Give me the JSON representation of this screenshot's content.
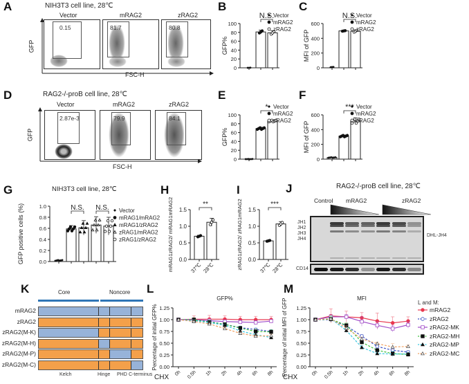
{
  "panels": {
    "A": {
      "label": "A",
      "title": "NIH3T3 cell line, 28℃",
      "samples": [
        "Vector",
        "mRAG2",
        "zRAG2"
      ],
      "gate_values": [
        "0.15",
        "81.7",
        "80.8"
      ],
      "y_axis": "GFP",
      "x_axis": "FSC-H"
    },
    "D": {
      "label": "D",
      "title": "RAG2-/-proB cell line, 28℃",
      "samples": [
        "Vector",
        "mRAG2",
        "zRAG2"
      ],
      "gate_values": [
        "2.87e-3",
        "79.9",
        "84.1"
      ],
      "y_axis": "GFP",
      "x_axis": "FSC-H"
    },
    "J": {
      "label": "J",
      "title": "RAG2-/-proB cell line, 28℃",
      "lanes": [
        "Control",
        "mRAG2",
        "zRAG2"
      ],
      "bands": [
        "JH1",
        "JH2",
        "JH3",
        "JH4"
      ],
      "right_label": "DHL-JH4",
      "loading": "CD14",
      "band_intensity": [
        0,
        1,
        0.8,
        0.75,
        1,
        0.9,
        0.45
      ],
      "cd14_intensity": [
        1,
        0.95,
        0.85,
        0.35,
        0.95,
        0.85,
        0.4
      ]
    },
    "K": {
      "label": "K",
      "header": [
        "Core",
        "Noncore"
      ],
      "header_color": "#2e75b6",
      "domains": [
        "Kelch",
        "Hinge",
        "PHD",
        "C-terminus"
      ],
      "colors": {
        "m": "#97b3d9",
        "z": "#f4a04a"
      },
      "constructs": [
        {
          "name": "mRAG2",
          "segments": [
            "m",
            "m",
            "m",
            "m"
          ]
        },
        {
          "name": "zRAG2",
          "segments": [
            "z",
            "z",
            "z",
            "z"
          ]
        },
        {
          "name": "zRAG2(M-K)",
          "segments": [
            "m",
            "z",
            "z",
            "z"
          ]
        },
        {
          "name": "zRAG2(M-H)",
          "segments": [
            "z",
            "m",
            "z",
            "z"
          ]
        },
        {
          "name": "zRAG2(M-P)",
          "segments": [
            "z",
            "z",
            "m",
            "z"
          ]
        },
        {
          "name": "zRAG2(M-C)",
          "segments": [
            "z",
            "z",
            "z",
            "m"
          ]
        }
      ]
    }
  },
  "chart_data": [
    {
      "id": "B",
      "type": "bar",
      "title": "",
      "ylabel": "GFP%",
      "categories": [
        "Vector",
        "mRAG2",
        "zRAG2"
      ],
      "values": [
        0,
        81,
        79
      ],
      "errors": [
        0.5,
        4,
        5
      ],
      "ylim": [
        0,
        100
      ],
      "yticks": [
        0,
        20,
        40,
        60,
        80,
        100
      ],
      "significance": [
        {
          "pair": [
            1,
            2
          ],
          "label": "N.S."
        }
      ],
      "legend": [
        "Vector",
        "mRAG2",
        "zRAG2"
      ],
      "markers": [
        "diamond",
        "filled-circle",
        "open-circle"
      ],
      "legend_position": "right"
    },
    {
      "id": "C",
      "type": "bar",
      "ylabel": "MFI of GFP",
      "categories": [
        "Vector",
        "mRAG2",
        "zRAG2"
      ],
      "values": [
        10,
        500,
        495
      ],
      "errors": [
        3,
        6,
        20
      ],
      "ylim": [
        0,
        600
      ],
      "yticks": [
        0,
        200,
        400,
        600
      ],
      "significance": [
        {
          "pair": [
            1,
            2
          ],
          "label": "N.S."
        }
      ],
      "legend": [
        "Vector",
        "mRAG2",
        "zRAG2"
      ],
      "legend_position": "right"
    },
    {
      "id": "E",
      "type": "bar",
      "ylabel": "GFP%",
      "categories": [
        "Vector",
        "mRAG2",
        "zRAG2"
      ],
      "values": [
        0,
        69,
        86
      ],
      "errors": [
        0.5,
        3,
        3
      ],
      "ylim": [
        0,
        100
      ],
      "yticks": [
        0,
        20,
        40,
        60,
        80,
        100
      ],
      "significance": [
        {
          "pair": [
            1,
            2
          ],
          "label": "*"
        }
      ],
      "legend": [
        "Vector",
        "mRAG2",
        "zRAG2"
      ],
      "legend_position": "right"
    },
    {
      "id": "F",
      "type": "bar",
      "ylabel": "MFI of GFP",
      "categories": [
        "Vector",
        "mRAG2",
        "zRAG2"
      ],
      "values": [
        22,
        312,
        515
      ],
      "errors": [
        5,
        15,
        45
      ],
      "ylim": [
        0,
        600
      ],
      "yticks": [
        0,
        200,
        400,
        600
      ],
      "significance": [
        {
          "pair": [
            1,
            2
          ],
          "label": "***"
        }
      ],
      "legend": [
        "Vector",
        "mRAG2",
        "zRAG2"
      ],
      "legend_position": "right"
    },
    {
      "id": "G",
      "type": "bar",
      "title": "NIH3T3 cell line, 28℃",
      "ylabel": "GFP positive cells (%)",
      "categories": [
        "Vector",
        "mRAG1/mRAG2",
        "mRAG1/zRAG2",
        "zRAG1/mRAG2",
        "zRAG1/zRAG2"
      ],
      "values": [
        0.02,
        0.59,
        0.61,
        0.66,
        0.64
      ],
      "errors": [
        0.01,
        0.06,
        0.13,
        0.15,
        0.16
      ],
      "ylim": [
        0,
        1.0
      ],
      "yticks": [
        "0.0",
        "0.2",
        "0.4",
        "0.6",
        "0.8",
        "1.0"
      ],
      "significance": [
        {
          "pair": [
            1,
            2
          ],
          "label": "N.S."
        },
        {
          "pair": [
            3,
            4
          ],
          "label": "N.S."
        }
      ],
      "legend": [
        "Vector",
        "mRAG1/mRAG2",
        "mRAG1/zRAG2",
        "zRAG1/mRAG2",
        "zRAG1/zRAG2"
      ],
      "legend_position": "right"
    },
    {
      "id": "H",
      "type": "bar",
      "ylabel": "mRAG1zRAG2/ mRAG1mRAG2",
      "categories": [
        "37℃",
        "28℃"
      ],
      "values": [
        0.7,
        1.12
      ],
      "errors": [
        0.03,
        0.12
      ],
      "ylim": [
        0,
        1.5
      ],
      "yticks": [
        "0.0",
        "0.5",
        "1.0",
        "1.5"
      ],
      "significance": [
        {
          "pair": [
            0,
            1
          ],
          "label": "**"
        }
      ]
    },
    {
      "id": "I",
      "type": "bar",
      "ylabel": "zRAG1zRAG2/ zRAG1mRAG2",
      "categories": [
        "37℃",
        "28℃"
      ],
      "values": [
        0.56,
        1.07
      ],
      "errors": [
        0.02,
        0.07
      ],
      "ylim": [
        0,
        1.5
      ],
      "yticks": [
        "0.0",
        "0.5",
        "1.0",
        "1.5"
      ],
      "significance": [
        {
          "pair": [
            0,
            1
          ],
          "label": "***"
        }
      ]
    },
    {
      "id": "L",
      "type": "line",
      "title": "GFP%",
      "ylabel": "Percentage of initial GFP%",
      "xlabel": "CHX",
      "x": [
        "0h",
        "0.5h",
        "1h",
        "2h",
        "4h",
        "6h",
        "8h"
      ],
      "ylim": [
        0,
        1.25
      ],
      "yticks": [
        "0.00",
        "0.25",
        "0.50",
        "0.75",
        "1.00",
        "1.25"
      ],
      "series": [
        {
          "name": "mRAG2",
          "values": [
            1.0,
            1.01,
            1.01,
            1.01,
            1.0,
            1.0,
            1.0
          ],
          "err": [
            0,
            0.07,
            0.08,
            0.07,
            0.07,
            0.07,
            0.07
          ]
        },
        {
          "name": "zRAG2",
          "values": [
            1.0,
            0.99,
            0.96,
            0.9,
            0.83,
            0.79,
            0.75
          ],
          "err": [
            0,
            0.03,
            0.03,
            0.03,
            0.03,
            0.03,
            0.03
          ]
        },
        {
          "name": "zRAG2-MK",
          "values": [
            1.0,
            1.0,
            0.98,
            0.96,
            0.95,
            0.94,
            0.97
          ],
          "err": [
            0,
            0.03,
            0.03,
            0.03,
            0.04,
            0.04,
            0.03
          ]
        },
        {
          "name": "zRAG2-MH",
          "values": [
            1.0,
            1.0,
            0.95,
            0.9,
            0.82,
            0.75,
            0.74
          ],
          "err": [
            0,
            0.04,
            0.04,
            0.04,
            0.04,
            0.05,
            0.05
          ]
        },
        {
          "name": "zRAG2-MP",
          "values": [
            1.0,
            0.98,
            0.94,
            0.88,
            0.76,
            0.68,
            0.62
          ],
          "err": [
            0,
            0.03,
            0.03,
            0.03,
            0.03,
            0.03,
            0.03
          ]
        },
        {
          "name": "zRAG2-MC",
          "values": [
            1.0,
            0.96,
            0.91,
            0.81,
            0.71,
            0.65,
            0.66
          ],
          "err": [
            0,
            0.03,
            0.03,
            0.03,
            0.03,
            0.03,
            0.03
          ]
        }
      ]
    },
    {
      "id": "M",
      "type": "line",
      "title": "MFI",
      "ylabel": "Percentage of initial MFI of GFP",
      "xlabel": "CHX",
      "x": [
        "0h",
        "0.5h",
        "1h",
        "2h",
        "4h",
        "6h",
        "8h"
      ],
      "ylim": [
        0,
        1.25
      ],
      "yticks": [
        "0.00",
        "0.25",
        "0.50",
        "0.75",
        "1.00",
        "1.25"
      ],
      "series": [
        {
          "name": "mRAG2",
          "values": [
            1.0,
            1.08,
            1.06,
            1.04,
            0.97,
            0.93,
            0.97
          ],
          "err": [
            0,
            0.15,
            0.12,
            0.11,
            0.17,
            0.13,
            0.09
          ]
        },
        {
          "name": "zRAG2",
          "values": [
            1.0,
            1.0,
            0.87,
            0.65,
            0.43,
            0.35,
            0.31
          ],
          "err": [
            0,
            0.03,
            0.03,
            0.03,
            0.03,
            0.03,
            0.03
          ]
        },
        {
          "name": "zRAG2-MK",
          "values": [
            1.0,
            1.06,
            1.06,
            0.96,
            0.88,
            0.81,
            0.89
          ],
          "err": [
            0,
            0.05,
            0.05,
            0.1,
            0.08,
            0.07,
            0.07
          ]
        },
        {
          "name": "zRAG2-MH",
          "values": [
            1.0,
            1.01,
            0.88,
            0.52,
            0.35,
            0.28,
            0.26
          ],
          "err": [
            0,
            0.05,
            0.05,
            0.05,
            0.03,
            0.03,
            0.02
          ]
        },
        {
          "name": "zRAG2-MP",
          "values": [
            1.0,
            1.02,
            0.77,
            0.41,
            0.28,
            0.27,
            0.27
          ],
          "err": [
            0,
            0.06,
            0.05,
            0.04,
            0.03,
            0.06,
            0.03
          ]
        },
        {
          "name": "zRAG2-MC",
          "values": [
            1.0,
            1.02,
            0.82,
            0.59,
            0.49,
            0.42,
            0.43
          ],
          "err": [
            0,
            0.08,
            0.05,
            0.04,
            0.03,
            0.07,
            0.03
          ]
        }
      ]
    }
  ],
  "line_legend": {
    "title": "L and M:",
    "items": [
      {
        "name": "mRAG2",
        "color": "#e8384f",
        "marker": "filled-circle",
        "dash": false
      },
      {
        "name": "zRAG2",
        "color": "#3a4fc4",
        "marker": "open-circle",
        "dash": true
      },
      {
        "name": "zRAG2-MK",
        "color": "#a04bc8",
        "marker": "open-square",
        "dash": false
      },
      {
        "name": "zRAG2-MH",
        "color": "#3dbf3d",
        "marker": "filled-square",
        "dash": true
      },
      {
        "name": "zRAG2-MP",
        "color": "#35c6e0",
        "marker": "filled-triangle",
        "dash": true
      },
      {
        "name": "zRAG2-MC",
        "color": "#f0a060",
        "marker": "open-triangle",
        "dash": true
      }
    ]
  }
}
